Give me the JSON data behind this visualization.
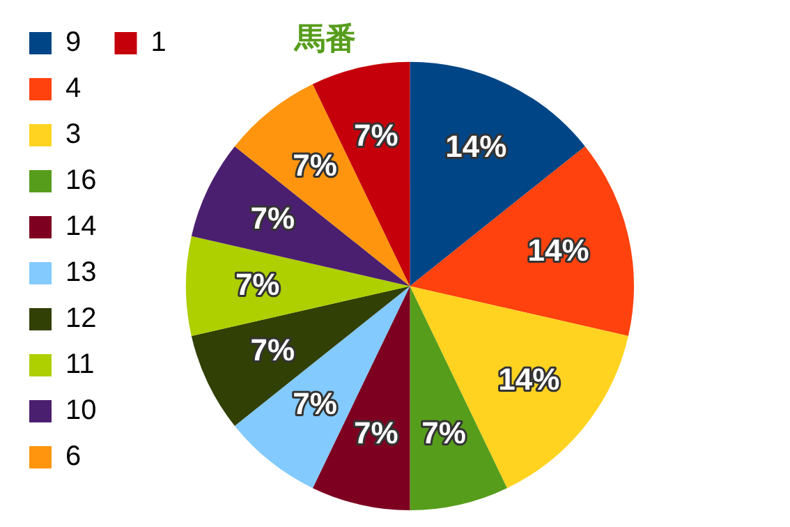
{
  "chart_data": {
    "type": "pie",
    "title": "馬番",
    "categories": [
      "9",
      "4",
      "3",
      "16",
      "14",
      "13",
      "12",
      "11",
      "10",
      "6",
      "1"
    ],
    "values": [
      14,
      14,
      14,
      7,
      7,
      7,
      7,
      7,
      7,
      7,
      7
    ],
    "value_labels": [
      "14%",
      "14%",
      "14%",
      "7%",
      "7%",
      "7%",
      "7%",
      "7%",
      "7%",
      "7%",
      "7%"
    ],
    "colors": [
      "#004586",
      "#ff420e",
      "#ffd320",
      "#579d1c",
      "#7e0021",
      "#83caff",
      "#314004",
      "#aecf00",
      "#4b1f6f",
      "#ff950e",
      "#c5000b"
    ],
    "legend": "left"
  }
}
